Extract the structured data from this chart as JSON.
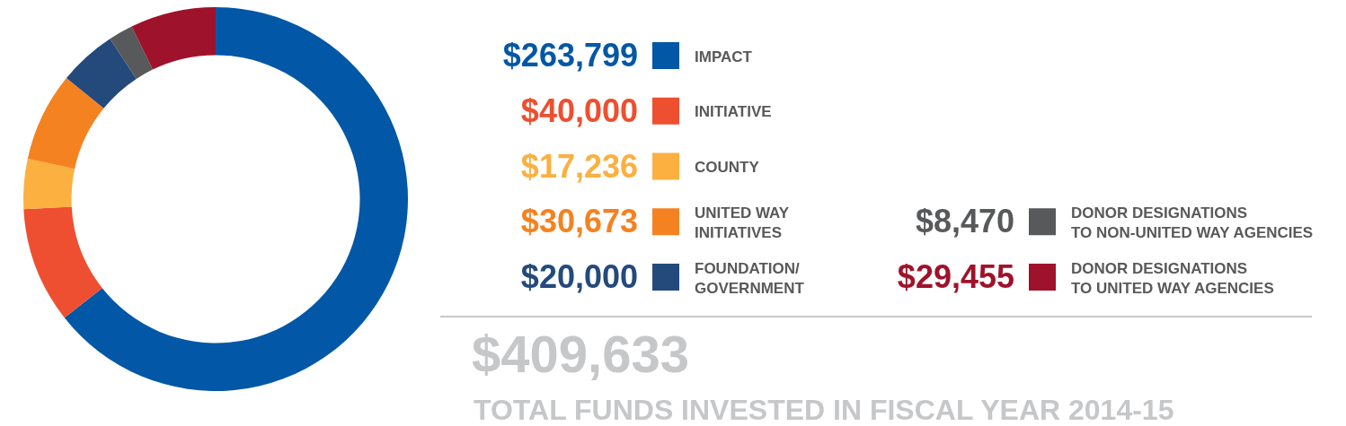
{
  "chart_data": {
    "type": "donut",
    "title": "$409,633",
    "subtitle": "TOTAL FUNDS INVESTED IN FISCAL YEAR 2014-15",
    "categories": [
      "IMPACT",
      "INITIATIVE",
      "COUNTY",
      "UNITED WAY\nINITIATIVES",
      "FOUNDATION/\nGOVERNMENT",
      "DONOR DESIGNATIONS\nTO NON-UNITED WAY AGENCIES",
      "DONOR DESIGNATIONS\nTO UNITED WAY AGENCIES"
    ],
    "values": [
      263799,
      40000,
      17236,
      30673,
      20000,
      8470,
      29455
    ],
    "colors": [
      "#0257a6",
      "#ee4f30",
      "#fbb040",
      "#f58220",
      "#244a7c",
      "#58595b",
      "#9f122b"
    ],
    "value_labels": [
      "$263,799",
      "$40,000",
      "$17,236",
      "$30,673",
      "$20,000",
      "$8,470",
      "$29,455"
    ],
    "legend": "right"
  }
}
